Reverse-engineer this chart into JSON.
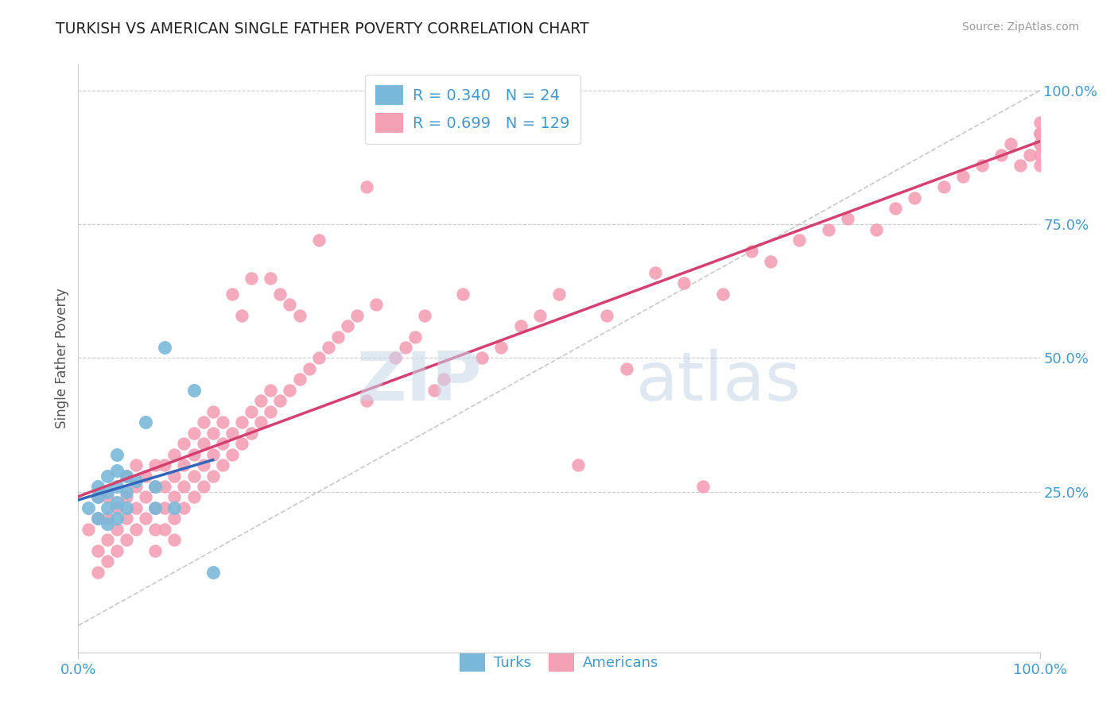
{
  "title": "TURKISH VS AMERICAN SINGLE FATHER POVERTY CORRELATION CHART",
  "source": "Source: ZipAtlas.com",
  "ylabel": "Single Father Poverty",
  "xlim": [
    0.0,
    1.0
  ],
  "ylim": [
    -0.05,
    1.05
  ],
  "plot_ylim": [
    0.0,
    1.0
  ],
  "turks_R": 0.34,
  "turks_N": 24,
  "americans_R": 0.699,
  "americans_N": 129,
  "turk_color": "#7ab8d9",
  "american_color": "#f4a0b5",
  "turk_line_color": "#3366bb",
  "american_line_color": "#d44070",
  "watermark_zip": "ZIP",
  "watermark_atlas": "atlas",
  "background_color": "#ffffff",
  "turks_x": [
    0.01,
    0.02,
    0.02,
    0.02,
    0.03,
    0.03,
    0.03,
    0.03,
    0.04,
    0.04,
    0.04,
    0.04,
    0.04,
    0.05,
    0.05,
    0.05,
    0.06,
    0.07,
    0.08,
    0.08,
    0.09,
    0.1,
    0.12,
    0.14
  ],
  "turks_y": [
    0.22,
    0.2,
    0.24,
    0.26,
    0.19,
    0.22,
    0.25,
    0.28,
    0.2,
    0.23,
    0.26,
    0.29,
    0.32,
    0.22,
    0.25,
    0.28,
    0.27,
    0.38,
    0.22,
    0.26,
    0.52,
    0.22,
    0.44,
    0.1
  ],
  "americans_x": [
    0.01,
    0.02,
    0.02,
    0.02,
    0.02,
    0.03,
    0.03,
    0.03,
    0.03,
    0.04,
    0.04,
    0.04,
    0.05,
    0.05,
    0.05,
    0.05,
    0.06,
    0.06,
    0.06,
    0.06,
    0.07,
    0.07,
    0.07,
    0.08,
    0.08,
    0.08,
    0.08,
    0.08,
    0.09,
    0.09,
    0.09,
    0.09,
    0.1,
    0.1,
    0.1,
    0.1,
    0.1,
    0.11,
    0.11,
    0.11,
    0.11,
    0.12,
    0.12,
    0.12,
    0.12,
    0.13,
    0.13,
    0.13,
    0.13,
    0.14,
    0.14,
    0.14,
    0.14,
    0.15,
    0.15,
    0.15,
    0.16,
    0.16,
    0.16,
    0.17,
    0.17,
    0.17,
    0.18,
    0.18,
    0.18,
    0.19,
    0.19,
    0.2,
    0.2,
    0.2,
    0.21,
    0.21,
    0.22,
    0.22,
    0.23,
    0.23,
    0.24,
    0.25,
    0.25,
    0.26,
    0.27,
    0.28,
    0.29,
    0.3,
    0.3,
    0.31,
    0.33,
    0.34,
    0.35,
    0.36,
    0.37,
    0.38,
    0.4,
    0.42,
    0.44,
    0.46,
    0.48,
    0.5,
    0.52,
    0.55,
    0.57,
    0.6,
    0.63,
    0.65,
    0.67,
    0.7,
    0.72,
    0.75,
    0.78,
    0.8,
    0.83,
    0.85,
    0.87,
    0.9,
    0.92,
    0.94,
    0.96,
    0.97,
    0.98,
    0.99,
    1.0,
    1.0,
    1.0,
    1.0,
    1.0,
    1.0,
    1.0,
    1.0,
    1.0
  ],
  "americans_y": [
    0.18,
    0.1,
    0.14,
    0.2,
    0.24,
    0.12,
    0.16,
    0.2,
    0.24,
    0.14,
    0.18,
    0.22,
    0.16,
    0.2,
    0.24,
    0.28,
    0.18,
    0.22,
    0.26,
    0.3,
    0.2,
    0.24,
    0.28,
    0.14,
    0.18,
    0.22,
    0.26,
    0.3,
    0.18,
    0.22,
    0.26,
    0.3,
    0.16,
    0.2,
    0.24,
    0.28,
    0.32,
    0.22,
    0.26,
    0.3,
    0.34,
    0.24,
    0.28,
    0.32,
    0.36,
    0.26,
    0.3,
    0.34,
    0.38,
    0.28,
    0.32,
    0.36,
    0.4,
    0.3,
    0.34,
    0.38,
    0.32,
    0.36,
    0.62,
    0.34,
    0.38,
    0.58,
    0.36,
    0.4,
    0.65,
    0.38,
    0.42,
    0.4,
    0.44,
    0.65,
    0.42,
    0.62,
    0.44,
    0.6,
    0.46,
    0.58,
    0.48,
    0.5,
    0.72,
    0.52,
    0.54,
    0.56,
    0.58,
    0.42,
    0.82,
    0.6,
    0.5,
    0.52,
    0.54,
    0.58,
    0.44,
    0.46,
    0.62,
    0.5,
    0.52,
    0.56,
    0.58,
    0.62,
    0.3,
    0.58,
    0.48,
    0.66,
    0.64,
    0.26,
    0.62,
    0.7,
    0.68,
    0.72,
    0.74,
    0.76,
    0.74,
    0.78,
    0.8,
    0.82,
    0.84,
    0.86,
    0.88,
    0.9,
    0.86,
    0.88,
    0.9,
    0.92,
    0.88,
    0.86,
    0.9,
    0.92,
    0.94,
    0.9,
    0.92
  ]
}
